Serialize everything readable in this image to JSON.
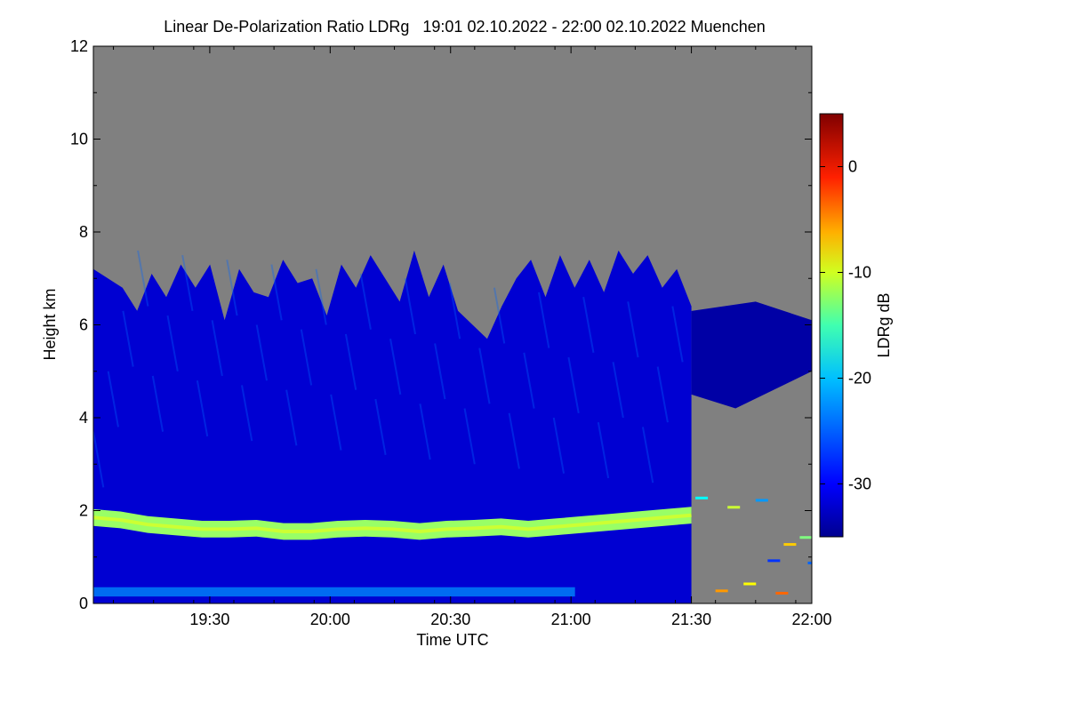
{
  "chart_data": {
    "type": "heatmap",
    "title": "Linear De-Polarization Ratio LDRg   19:01 02.10.2022 - 22:00 02.10.2022 Muenchen",
    "xlabel": "Time UTC",
    "ylabel": "Height km",
    "colorbar_label": "LDRg dB",
    "x_range": [
      "19:01",
      "22:00"
    ],
    "x_ticks": [
      "19:30",
      "20:00",
      "20:30",
      "21:00",
      "21:30",
      "22:00"
    ],
    "x_tick_minutes": [
      29,
      59,
      89,
      119,
      149,
      179
    ],
    "ylim": [
      0,
      12
    ],
    "y_ticks": [
      0,
      2,
      4,
      6,
      8,
      10,
      12
    ],
    "color_range": [
      -35,
      5
    ],
    "colorbar_ticks": [
      0,
      -10,
      -20,
      -30
    ],
    "no_data_color": "#808080",
    "colormap": [
      "#00008f",
      "#0000ff",
      "#0080ff",
      "#00ffff",
      "#80ff80",
      "#ffff00",
      "#ff8000",
      "#ff0000",
      "#800000"
    ],
    "features": {
      "cloud_top_km": [
        7.2,
        7.0,
        6.8,
        6.3,
        7.1,
        6.6,
        7.3,
        6.8,
        7.3,
        6.1,
        7.2,
        6.7,
        6.6,
        7.4,
        6.9,
        7.0,
        6.2,
        7.3,
        6.8,
        7.5,
        7.0,
        6.5,
        7.6,
        6.6,
        7.3,
        6.3,
        6.0,
        5.7,
        6.4,
        7.0,
        7.4,
        6.6,
        7.5,
        6.8,
        7.4,
        6.7,
        7.6,
        7.1,
        7.5,
        6.8,
        7.2,
        6.4
      ],
      "layer_ldr_db": -32,
      "band_center_km": [
        1.85,
        1.8,
        1.7,
        1.65,
        1.6,
        1.6,
        1.62,
        1.55,
        1.55,
        1.6,
        1.62,
        1.6,
        1.55,
        1.6,
        1.62,
        1.65,
        1.6,
        1.65,
        1.7,
        1.75,
        1.8,
        1.85,
        1.9
      ],
      "band_ldr_db": -14,
      "lower_layer_km": 0.25,
      "lower_layer_ldr_db": -24,
      "cloud_end_minute": 149,
      "late_cloud_range_km": [
        4.2,
        6.5
      ],
      "late_cloud_ldr_db": -34
    }
  }
}
